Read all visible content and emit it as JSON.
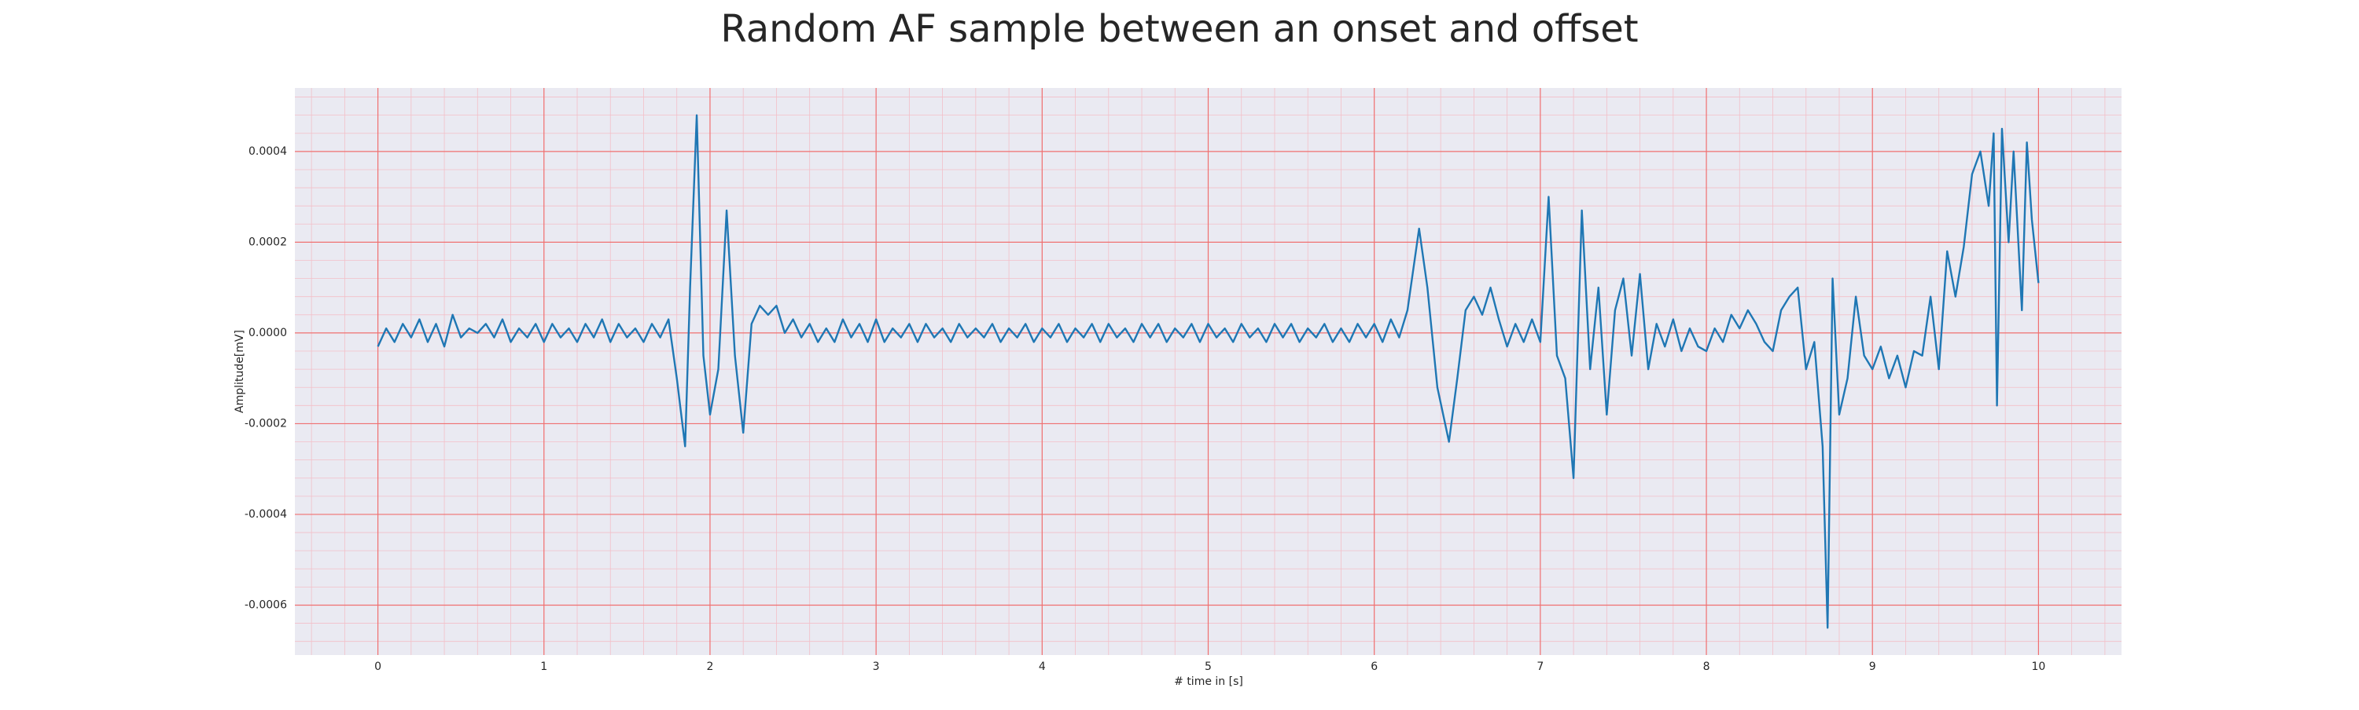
{
  "chart_data": {
    "type": "line",
    "title": "Random AF sample between an onset and offset",
    "x_label": "# time in [s]",
    "y_label": "Amplitude[mV]",
    "color": "#1f77b4",
    "grid": true,
    "minor_grid": true,
    "xlim": [
      -0.5,
      10.5
    ],
    "xticks": [
      0,
      1,
      2,
      3,
      4,
      5,
      6,
      7,
      8,
      9,
      10
    ],
    "ylim": [
      -0.00071,
      0.00054
    ],
    "yticks": [
      -0.0006,
      -0.0004,
      -0.0002,
      {
        "value": 0,
        "label": "0.0000"
      },
      0.0002,
      0.0004
    ],
    "x": [
      0,
      0.05,
      0.1,
      0.15,
      0.2,
      0.25,
      0.3,
      0.35,
      0.4,
      0.45,
      0.5,
      0.55,
      0.6,
      0.65,
      0.7,
      0.75,
      0.8,
      0.85,
      0.9,
      0.95,
      1.0,
      1.05,
      1.1,
      1.15,
      1.2,
      1.25,
      1.3,
      1.35,
      1.4,
      1.45,
      1.5,
      1.55,
      1.6,
      1.65,
      1.7,
      1.75,
      1.8,
      1.85,
      1.88,
      1.92,
      1.96,
      2.0,
      2.05,
      2.1,
      2.15,
      2.2,
      2.25,
      2.3,
      2.35,
      2.4,
      2.45,
      2.5,
      2.55,
      2.6,
      2.65,
      2.7,
      2.75,
      2.8,
      2.85,
      2.9,
      2.95,
      3.0,
      3.05,
      3.1,
      3.15,
      3.2,
      3.25,
      3.3,
      3.35,
      3.4,
      3.45,
      3.5,
      3.55,
      3.6,
      3.65,
      3.7,
      3.75,
      3.8,
      3.85,
      3.9,
      3.95,
      4.0,
      4.05,
      4.1,
      4.15,
      4.2,
      4.25,
      4.3,
      4.35,
      4.4,
      4.45,
      4.5,
      4.55,
      4.6,
      4.65,
      4.7,
      4.75,
      4.8,
      4.85,
      4.9,
      4.95,
      5.0,
      5.05,
      5.1,
      5.15,
      5.2,
      5.25,
      5.3,
      5.35,
      5.4,
      5.45,
      5.5,
      5.55,
      5.6,
      5.65,
      5.7,
      5.75,
      5.8,
      5.85,
      5.9,
      5.95,
      6.0,
      6.05,
      6.1,
      6.15,
      6.2,
      6.27,
      6.32,
      6.38,
      6.45,
      6.5,
      6.55,
      6.6,
      6.65,
      6.7,
      6.75,
      6.8,
      6.85,
      6.9,
      6.95,
      7.0,
      7.05,
      7.1,
      7.15,
      7.2,
      7.25,
      7.3,
      7.35,
      7.4,
      7.45,
      7.5,
      7.55,
      7.6,
      7.65,
      7.7,
      7.75,
      7.8,
      7.85,
      7.9,
      7.95,
      8.0,
      8.05,
      8.1,
      8.15,
      8.2,
      8.25,
      8.3,
      8.35,
      8.4,
      8.45,
      8.5,
      8.55,
      8.6,
      8.65,
      8.7,
      8.73,
      8.76,
      8.8,
      8.85,
      8.9,
      8.95,
      9.0,
      9.05,
      9.1,
      9.15,
      9.2,
      9.25,
      9.3,
      9.35,
      9.4,
      9.45,
      9.5,
      9.55,
      9.6,
      9.65,
      9.7,
      9.73,
      9.75,
      9.78,
      9.82,
      9.85,
      9.9,
      9.93,
      9.96,
      10.0
    ],
    "values": [
      -3e-05,
      1e-05,
      -2e-05,
      2e-05,
      -1e-05,
      3e-05,
      -2e-05,
      2e-05,
      -3e-05,
      4e-05,
      -1e-05,
      1e-05,
      0,
      2e-05,
      -1e-05,
      3e-05,
      -2e-05,
      1e-05,
      -1e-05,
      2e-05,
      -2e-05,
      2e-05,
      -1e-05,
      1e-05,
      -2e-05,
      2e-05,
      -1e-05,
      3e-05,
      -2e-05,
      2e-05,
      -1e-05,
      1e-05,
      -2e-05,
      2e-05,
      -1e-05,
      3e-05,
      -0.0001,
      -0.00025,
      0.0001,
      0.00048,
      -5e-05,
      -0.00018,
      -8e-05,
      0.00027,
      -5e-05,
      -0.00022,
      2e-05,
      6e-05,
      4e-05,
      6e-05,
      0,
      3e-05,
      -1e-05,
      2e-05,
      -2e-05,
      1e-05,
      -2e-05,
      3e-05,
      -1e-05,
      2e-05,
      -2e-05,
      3e-05,
      -2e-05,
      1e-05,
      -1e-05,
      2e-05,
      -2e-05,
      2e-05,
      -1e-05,
      1e-05,
      -2e-05,
      2e-05,
      -1e-05,
      1e-05,
      -1e-05,
      2e-05,
      -2e-05,
      1e-05,
      -1e-05,
      2e-05,
      -2e-05,
      1e-05,
      -1e-05,
      2e-05,
      -2e-05,
      1e-05,
      -1e-05,
      2e-05,
      -2e-05,
      2e-05,
      -1e-05,
      1e-05,
      -2e-05,
      2e-05,
      -1e-05,
      2e-05,
      -2e-05,
      1e-05,
      -1e-05,
      2e-05,
      -2e-05,
      2e-05,
      -1e-05,
      1e-05,
      -2e-05,
      2e-05,
      -1e-05,
      1e-05,
      -2e-05,
      2e-05,
      -1e-05,
      2e-05,
      -2e-05,
      1e-05,
      -1e-05,
      2e-05,
      -2e-05,
      1e-05,
      -2e-05,
      2e-05,
      -1e-05,
      2e-05,
      -2e-05,
      3e-05,
      -1e-05,
      5e-05,
      0.00023,
      0.0001,
      -0.00012,
      -0.00024,
      -0.0001,
      5e-05,
      8e-05,
      4e-05,
      0.0001,
      3e-05,
      -3e-05,
      2e-05,
      -2e-05,
      3e-05,
      -2e-05,
      0.0003,
      -5e-05,
      -0.0001,
      -0.00032,
      0.00027,
      -8e-05,
      0.0001,
      -0.00018,
      5e-05,
      0.00012,
      -5e-05,
      0.00013,
      -8e-05,
      2e-05,
      -3e-05,
      3e-05,
      -4e-05,
      1e-05,
      -3e-05,
      -4e-05,
      1e-05,
      -2e-05,
      4e-05,
      1e-05,
      5e-05,
      2e-05,
      -2e-05,
      -4e-05,
      5e-05,
      8e-05,
      0.0001,
      -8e-05,
      -2e-05,
      -0.00025,
      -0.00065,
      0.00012,
      -0.00018,
      -0.0001,
      8e-05,
      -5e-05,
      -8e-05,
      -3e-05,
      -0.0001,
      -5e-05,
      -0.00012,
      -4e-05,
      -5e-05,
      8e-05,
      -8e-05,
      0.00018,
      8e-05,
      0.00019,
      0.00035,
      0.0004,
      0.00028,
      0.00044,
      -0.00016,
      0.00045,
      0.0002,
      0.0004,
      5e-05,
      0.00042,
      0.00025,
      0.00011
    ]
  }
}
